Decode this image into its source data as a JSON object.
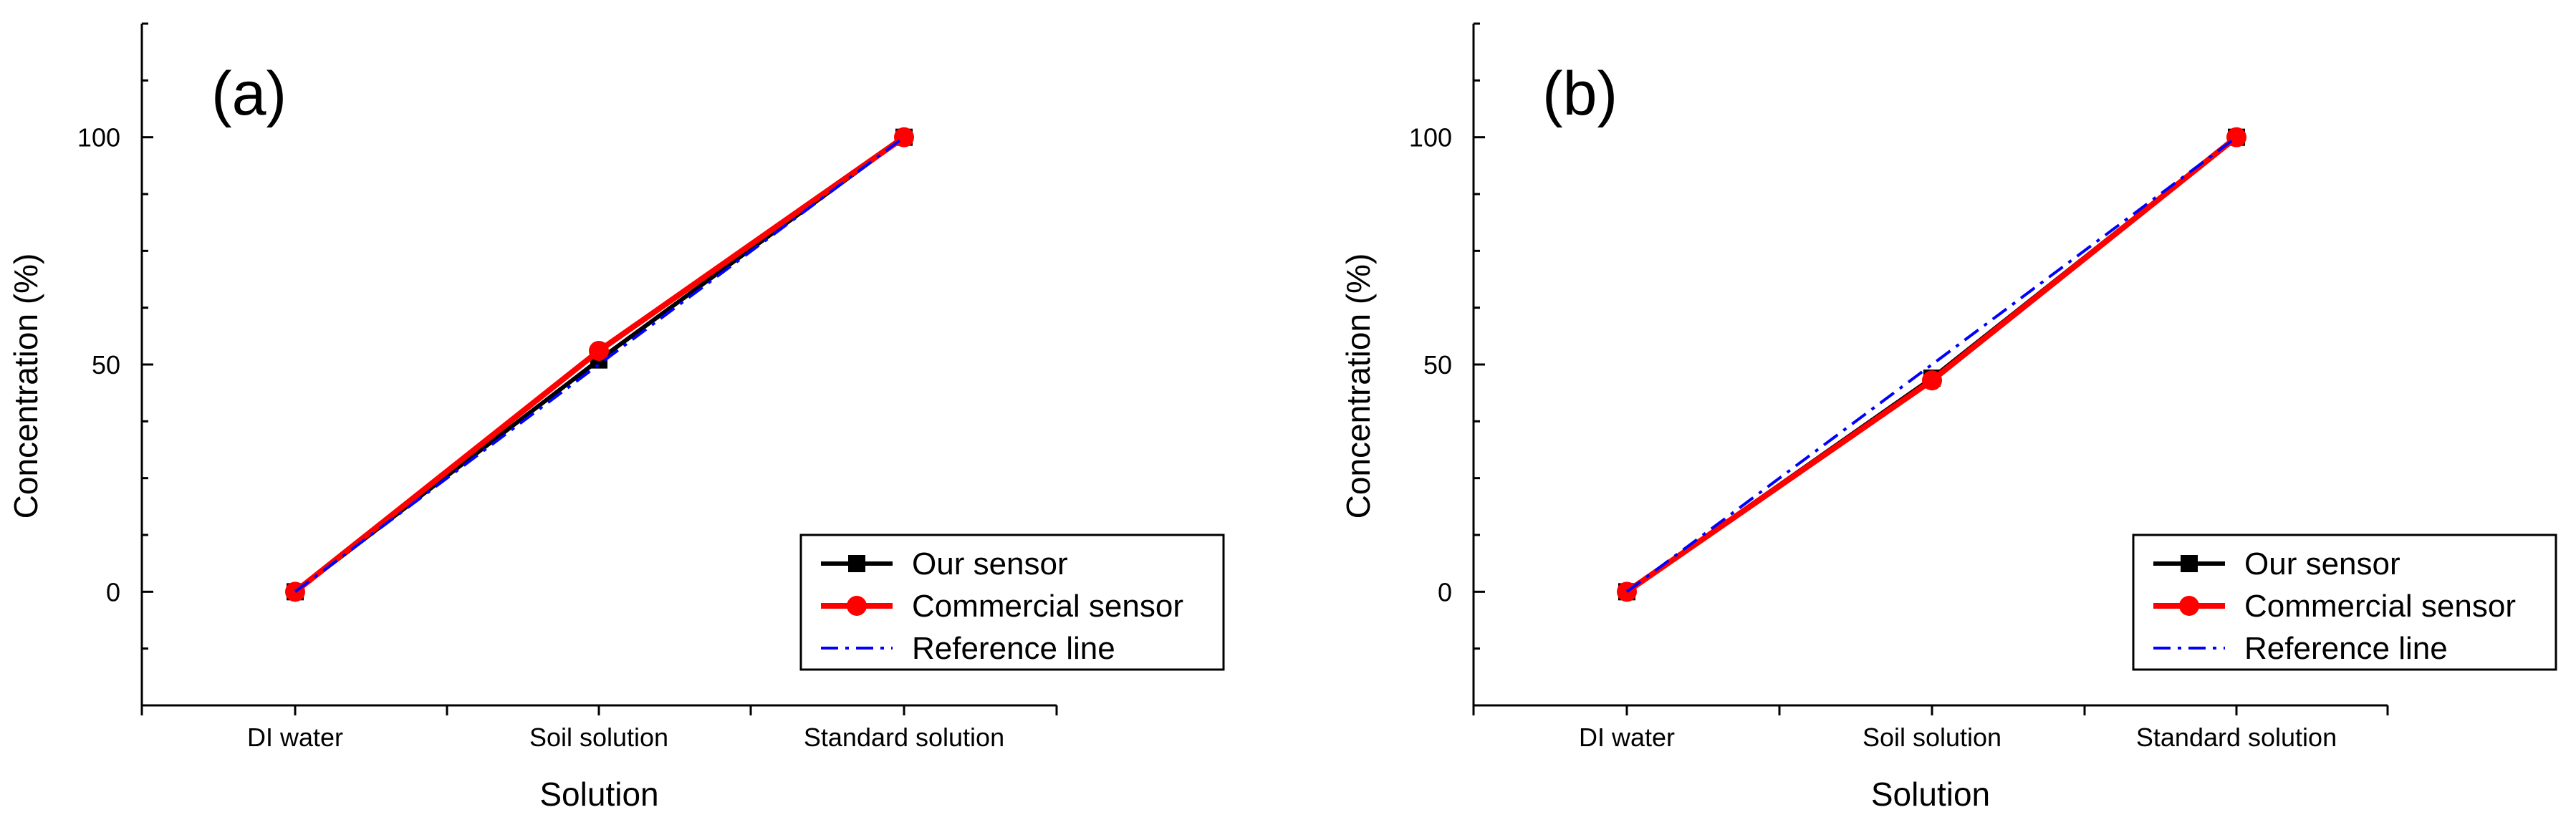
{
  "chart_data": [
    {
      "type": "line",
      "panel_label": "(a)",
      "categories": [
        "DI water",
        "Soil solution",
        "Standard solution"
      ],
      "xlabel": "Solution",
      "ylabel": "Concentration (%)",
      "ylim": [
        -25,
        125
      ],
      "yticks": [
        0,
        50,
        100
      ],
      "grid": false,
      "legend_position": "bottom-right",
      "series": [
        {
          "name": "Our sensor",
          "values": [
            0,
            51,
            100
          ],
          "color": "#000000",
          "marker": "square",
          "style": "solid"
        },
        {
          "name": "Commercial sensor",
          "values": [
            0,
            53,
            100
          ],
          "color": "#ff0000",
          "marker": "circle",
          "style": "solid"
        },
        {
          "name": "Reference line",
          "values": [
            0,
            50,
            100
          ],
          "color": "#0000ff",
          "marker": "none",
          "style": "dashdot"
        }
      ]
    },
    {
      "type": "line",
      "panel_label": "(b)",
      "categories": [
        "DI water",
        "Soil solution",
        "Standard solution"
      ],
      "xlabel": "Solution",
      "ylabel": "Concentration (%)",
      "ylim": [
        -25,
        125
      ],
      "yticks": [
        0,
        50,
        100
      ],
      "grid": false,
      "legend_position": "bottom-right",
      "series": [
        {
          "name": "Our sensor",
          "values": [
            0,
            47,
            100
          ],
          "color": "#000000",
          "marker": "square",
          "style": "solid"
        },
        {
          "name": "Commercial sensor",
          "values": [
            0,
            46.5,
            100
          ],
          "color": "#ff0000",
          "marker": "circle",
          "style": "solid"
        },
        {
          "name": "Reference line",
          "values": [
            0,
            50,
            100
          ],
          "color": "#0000ff",
          "marker": "none",
          "style": "dashdot"
        }
      ]
    }
  ]
}
